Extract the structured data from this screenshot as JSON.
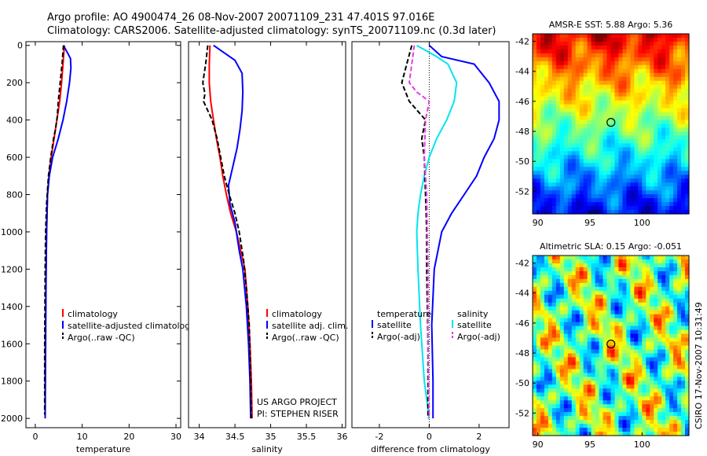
{
  "title_line1": "Argo profile: AO 4900474_26 08-Nov-2007 20071109_231 47.401S 97.016E",
  "title_line2": "Climatology: CARS2006. Satellite-adjusted climatology: synTS_20071109.nc (0.3d later)",
  "footer": "CSIRO 17-Nov-2007 10:31:49",
  "colors": {
    "climatology": "#ff0000",
    "satellite": "#0000ff",
    "argo": "#000000",
    "satellite_salinity": "#00e5ee",
    "argo_salinity_adj": "#e040e0"
  },
  "chart_data": [
    {
      "type": "line",
      "id": "temperature",
      "xlabel": "temperature",
      "xlim": [
        -2,
        31
      ],
      "ylim": [
        2050,
        -20
      ],
      "xticks": [
        0,
        10,
        20,
        30
      ],
      "yticks": [
        0,
        200,
        400,
        600,
        800,
        1000,
        1200,
        1400,
        1600,
        1800,
        2000
      ],
      "legend": [
        "climatology",
        "satellite-adjusted climatology",
        "Argo(..raw -QC)"
      ],
      "series": [
        {
          "name": "climatology",
          "color": "#ff0000",
          "dash": "",
          "x": [
            6.2,
            5.9,
            5.6,
            5.2,
            4.6,
            4.0,
            3.4,
            2.9,
            2.6,
            2.4,
            2.3,
            2.2,
            2.1,
            2.1
          ],
          "y": [
            0,
            100,
            200,
            300,
            400,
            500,
            600,
            700,
            800,
            1000,
            1200,
            1400,
            1700,
            2000
          ]
        },
        {
          "name": "satellite-adjusted climatology",
          "color": "#0000ff",
          "dash": "",
          "x": [
            6.0,
            7.5,
            7.6,
            7.3,
            6.7,
            5.9,
            4.9,
            3.7,
            3.0,
            2.6,
            2.4,
            2.3,
            2.2,
            2.1
          ],
          "y": [
            0,
            70,
            120,
            200,
            300,
            400,
            500,
            600,
            700,
            800,
            1000,
            1200,
            1600,
            2000
          ]
        },
        {
          "name": "Argo(..raw -QC)",
          "color": "#000000",
          "dash": "6,3",
          "x": [
            6.0,
            5.7,
            5.3,
            4.9,
            4.7,
            4.3,
            3.9,
            3.3,
            2.8,
            2.4,
            2.2,
            2.1,
            2.0,
            2.0
          ],
          "y": [
            0,
            100,
            200,
            300,
            380,
            450,
            500,
            600,
            700,
            850,
            1000,
            1200,
            1600,
            1980
          ]
        }
      ]
    },
    {
      "type": "line",
      "id": "salinity",
      "xlabel": "salinity",
      "xlim": [
        33.85,
        36.05
      ],
      "ylim": [
        2050,
        -20
      ],
      "xticks": [
        34,
        34.5,
        35,
        35.5,
        36
      ],
      "yticks": [],
      "legend": [
        "climatology",
        "satellite adj. clim.",
        "Argo(..raw -QC)"
      ],
      "annotation": [
        "US ARGO PROJECT",
        "PI: STEPHEN RISER"
      ],
      "series": [
        {
          "name": "climatology",
          "color": "#ff0000",
          "dash": "",
          "x": [
            34.15,
            34.14,
            34.14,
            34.16,
            34.2,
            34.24,
            34.29,
            34.33,
            34.38,
            34.44,
            34.52,
            34.58,
            34.64,
            34.68,
            34.71,
            34.73,
            34.74
          ],
          "y": [
            0,
            100,
            200,
            300,
            400,
            500,
            600,
            700,
            800,
            900,
            1000,
            1100,
            1200,
            1400,
            1600,
            1800,
            2000
          ]
        },
        {
          "name": "satellite adj. clim.",
          "color": "#0000ff",
          "dash": "",
          "x": [
            34.2,
            34.5,
            34.6,
            34.61,
            34.6,
            34.57,
            34.53,
            34.47,
            34.41,
            34.43,
            34.5,
            34.56,
            34.61,
            34.66,
            34.69,
            34.71,
            34.72
          ],
          "y": [
            0,
            80,
            150,
            250,
            350,
            450,
            550,
            650,
            750,
            850,
            950,
            1100,
            1200,
            1400,
            1600,
            1800,
            2000
          ]
        },
        {
          "name": "Argo(..raw -QC)",
          "color": "#000000",
          "dash": "6,3",
          "x": [
            34.12,
            34.09,
            34.05,
            34.08,
            34.06,
            34.18,
            34.25,
            34.3,
            34.35,
            34.42,
            34.5,
            34.56,
            34.62,
            34.66,
            34.7,
            34.72,
            34.73
          ],
          "y": [
            0,
            100,
            200,
            260,
            300,
            400,
            500,
            600,
            700,
            800,
            900,
            1000,
            1150,
            1300,
            1500,
            1800,
            2000
          ]
        }
      ]
    },
    {
      "type": "line",
      "id": "difference",
      "xlabel": "difference from climatology",
      "xlim": [
        -3.1,
        3.2
      ],
      "ylim": [
        2050,
        -20
      ],
      "xticks": [
        -2,
        0,
        2
      ],
      "yticks": [],
      "legend_left_title": "temperature",
      "legend_right_title": "salinity",
      "legend_left": [
        "satellite",
        "Argo(-adj)"
      ],
      "legend_right": [
        "satellite",
        "Argo(-adj)"
      ],
      "series": [
        {
          "name": "temperature satellite",
          "color": "#0000ff",
          "dash": "",
          "x": [
            0,
            0.5,
            1.8,
            2.4,
            2.8,
            2.8,
            2.6,
            2.2,
            1.9,
            1.4,
            0.9,
            0.5,
            0.2,
            0.1,
            0.15,
            0.15
          ],
          "y": [
            0,
            60,
            100,
            200,
            300,
            400,
            500,
            600,
            700,
            800,
            900,
            1000,
            1200,
            1500,
            1800,
            2000
          ]
        },
        {
          "name": "salinity satellite",
          "color": "#00e5ee",
          "dash": "",
          "x": [
            -0.5,
            0.3,
            0.75,
            1.1,
            1.0,
            0.7,
            0.3,
            0.0,
            -0.2,
            -0.35,
            -0.45,
            -0.5,
            -0.45,
            -0.35,
            -0.2,
            0.0
          ],
          "y": [
            0,
            60,
            100,
            200,
            300,
            400,
            500,
            600,
            700,
            800,
            900,
            1000,
            1200,
            1500,
            1800,
            2000
          ]
        },
        {
          "name": "temperature Argo(-adj)",
          "color": "#000000",
          "dash": "6,3",
          "x": [
            -0.7,
            -0.9,
            -1.1,
            -0.8,
            -0.15,
            -0.3,
            -0.2,
            -0.15,
            -0.1,
            -0.1,
            -0.05,
            -0.05
          ],
          "y": [
            0,
            100,
            200,
            300,
            400,
            500,
            600,
            800,
            1000,
            1200,
            1600,
            2000
          ]
        },
        {
          "name": "salinity Argo(-adj)",
          "color": "#e040e0",
          "dash": "6,3",
          "x": [
            -0.6,
            -0.8,
            -0.5,
            0.0,
            -0.15,
            -0.2,
            -0.1,
            -0.05,
            -0.05,
            0.0
          ],
          "y": [
            0,
            200,
            250,
            300,
            400,
            600,
            800,
            1200,
            1600,
            2000
          ]
        }
      ]
    },
    {
      "type": "heatmap",
      "id": "sst",
      "title": "AMSR-E SST: 5.88 Argo: 5.36",
      "xlim": [
        89.5,
        104.5
      ],
      "ylim": [
        -53.5,
        -41.5
      ],
      "xticks": [
        90,
        95,
        100
      ],
      "yticks": [
        -42,
        -44,
        -46,
        -48,
        -50,
        -52
      ],
      "colormap": "jet",
      "marker": {
        "lon": 97.016,
        "lat": -47.401
      }
    },
    {
      "type": "heatmap",
      "id": "sla",
      "title": "Altimetric SLA: 0.15 Argo: -0.051",
      "xlim": [
        89.5,
        104.5
      ],
      "ylim": [
        -53.5,
        -41.5
      ],
      "xticks": [
        90,
        95,
        100
      ],
      "yticks": [
        -42,
        -44,
        -46,
        -48,
        -50,
        -52
      ],
      "colormap": "jet",
      "marker": {
        "lon": 97.016,
        "lat": -47.401
      }
    }
  ]
}
